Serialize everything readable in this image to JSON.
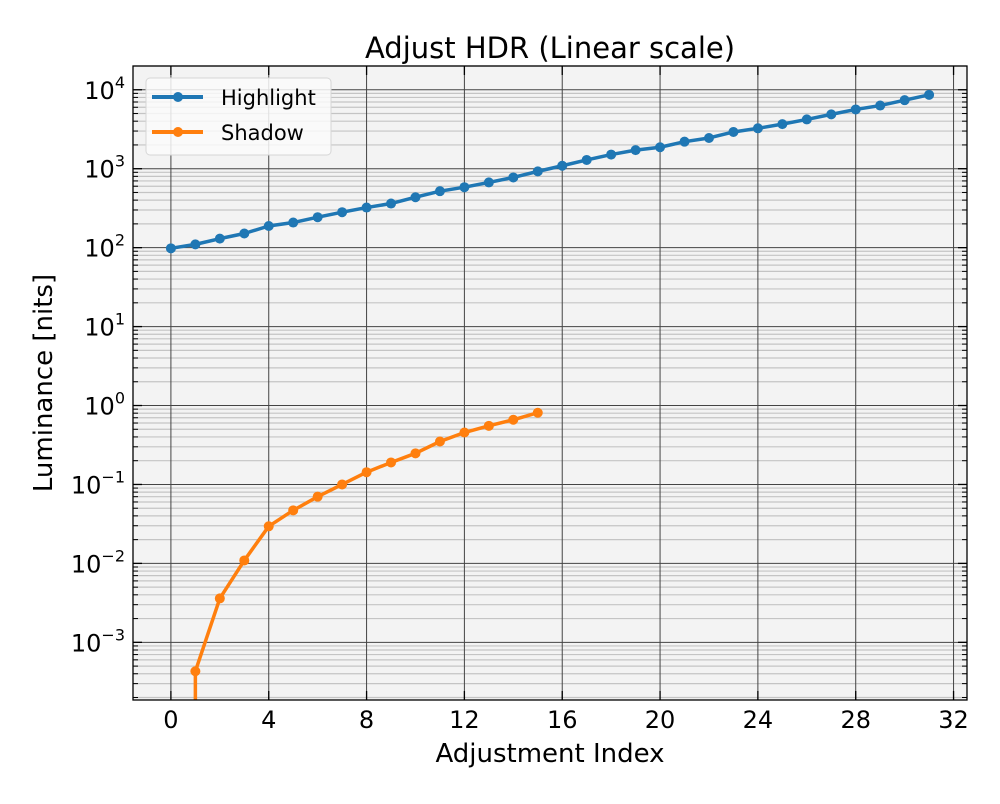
{
  "chart_data": {
    "type": "line",
    "title": "Adjust HDR (Linear scale)",
    "xlabel": "Adjustment Index",
    "ylabel": "Luminance [nits]",
    "xlim": [
      -1.55,
      32.55
    ],
    "ylim": [
      0.000186,
      20000
    ],
    "yscale": "log",
    "grid": true,
    "legend": "top-left",
    "xticks": [
      0,
      4,
      8,
      12,
      16,
      20,
      24,
      28,
      32
    ],
    "yticks": [
      {
        "base": "10",
        "exp": "−3",
        "value": 0.001
      },
      {
        "base": "10",
        "exp": "−2",
        "value": 0.01
      },
      {
        "base": "10",
        "exp": "−1",
        "value": 0.1
      },
      {
        "base": "10",
        "exp": "0",
        "value": 1
      },
      {
        "base": "10",
        "exp": "1",
        "value": 10
      },
      {
        "base": "10",
        "exp": "2",
        "value": 100
      },
      {
        "base": "10",
        "exp": "3",
        "value": 1000
      },
      {
        "base": "10",
        "exp": "4",
        "value": 10000
      }
    ],
    "series": [
      {
        "name": "Highlight",
        "color": "#1f77b4",
        "x": [
          0,
          1,
          2,
          3,
          4,
          5,
          6,
          7,
          8,
          9,
          10,
          11,
          12,
          13,
          14,
          15,
          16,
          17,
          18,
          19,
          20,
          21,
          22,
          23,
          24,
          25,
          26,
          27,
          28,
          29,
          30,
          31
        ],
        "y": [
          98,
          110,
          130,
          151,
          188,
          208,
          243,
          281,
          322,
          362,
          435,
          519,
          583,
          670,
          775,
          925,
          1090,
          1290,
          1510,
          1720,
          1870,
          2200,
          2450,
          2920,
          3250,
          3670,
          4210,
          4880,
          5630,
          6310,
          7380,
          8630
        ]
      },
      {
        "name": "Shadow",
        "color": "#ff7f0e",
        "x": [
          0,
          1,
          2,
          3,
          4,
          5,
          6,
          7,
          8,
          9,
          10,
          11,
          12,
          13,
          14,
          15
        ],
        "y": [
          0,
          0.00043,
          0.0036,
          0.0109,
          0.0295,
          0.047,
          0.07,
          0.1,
          0.143,
          0.19,
          0.248,
          0.35,
          0.455,
          0.553,
          0.66,
          0.81
        ]
      }
    ]
  }
}
